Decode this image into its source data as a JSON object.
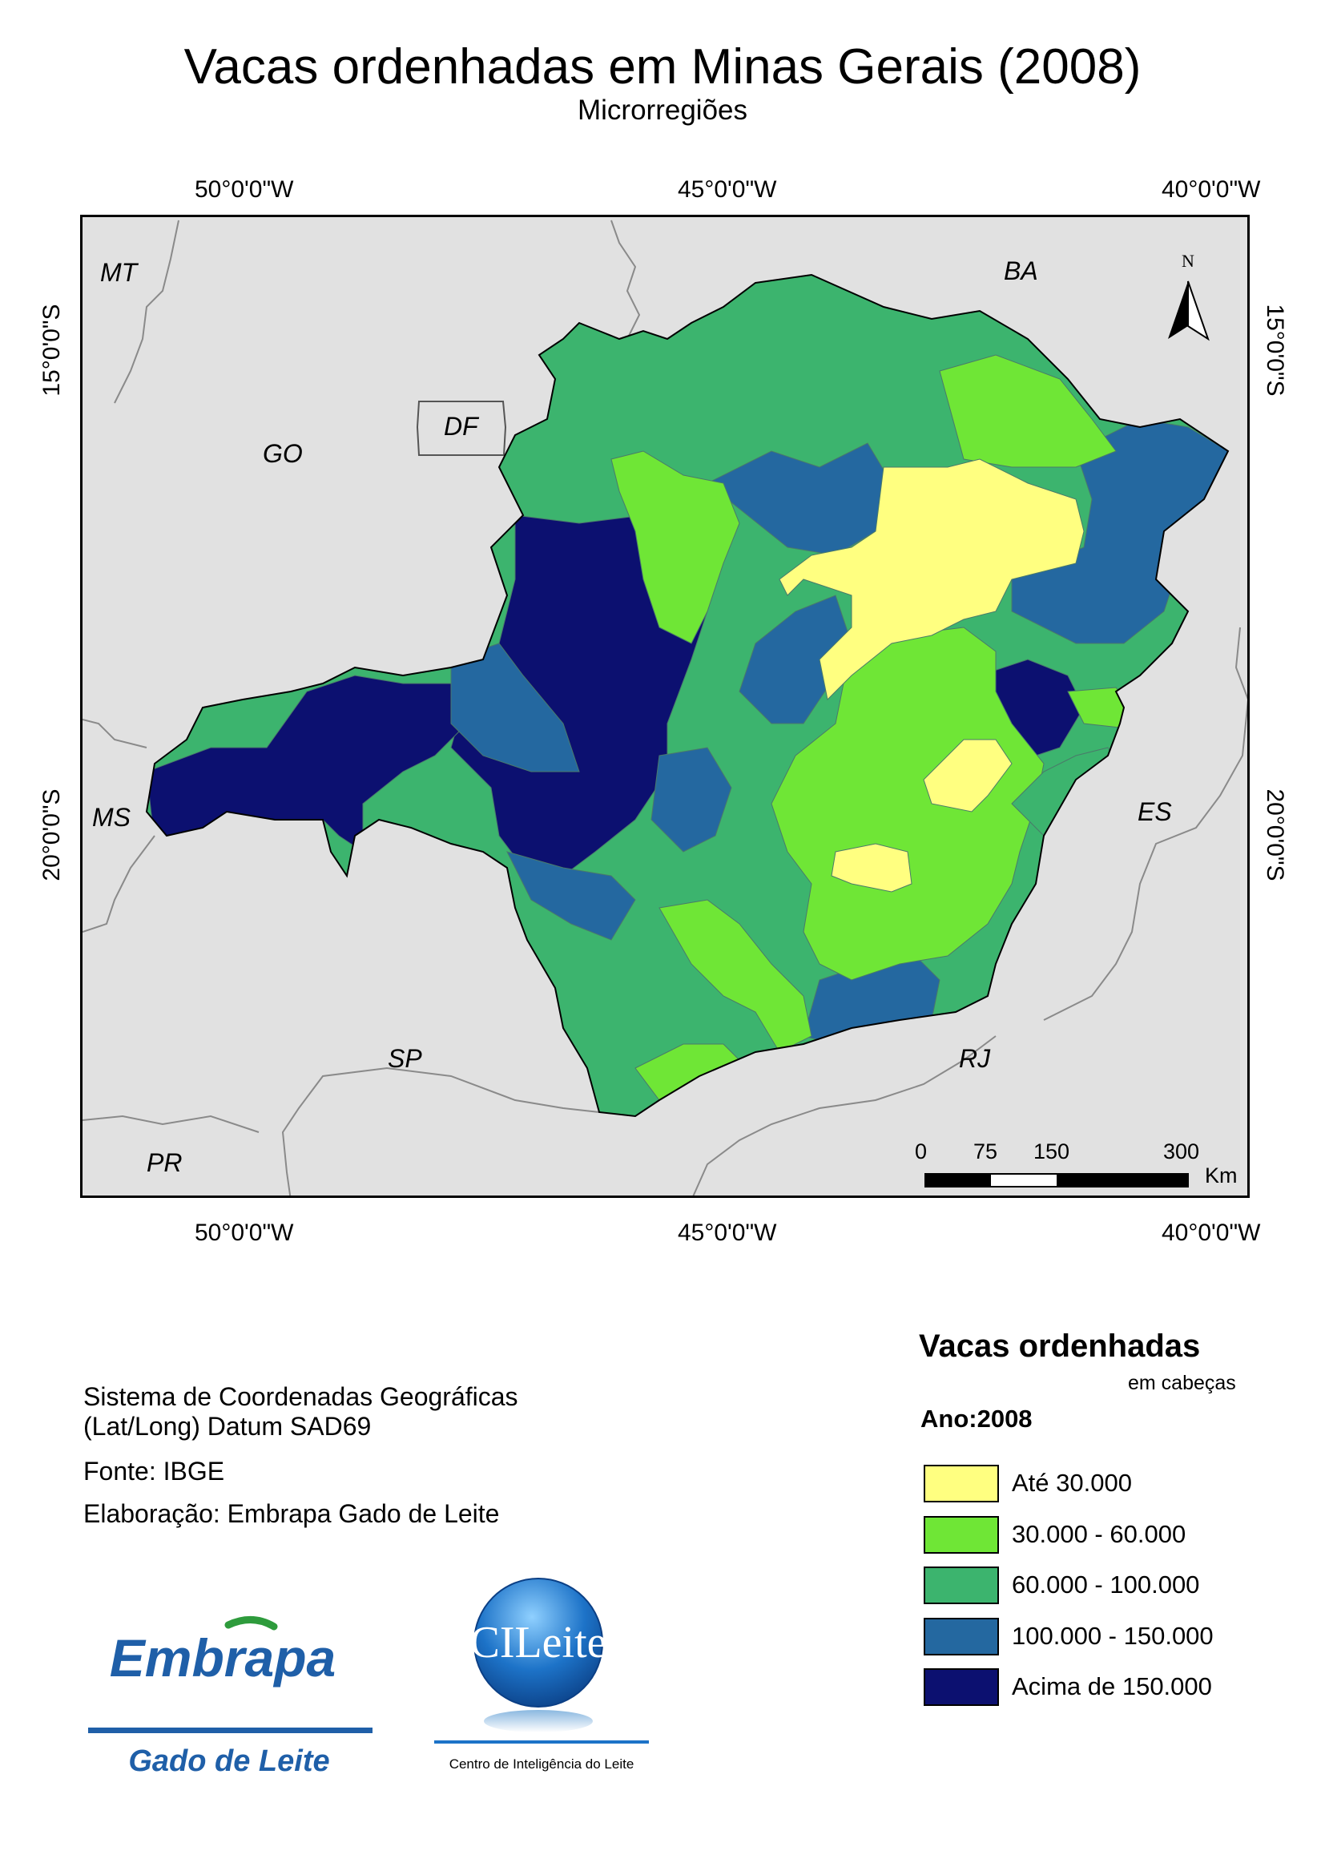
{
  "title": "Vacas ordenhadas em Minas Gerais (2008)",
  "subtitle": "Microrregiões",
  "graticule": {
    "top": [
      "50°0'0\"W",
      "45°0'0\"W",
      "40°0'0\"W"
    ],
    "bottom": [
      "50°0'0\"W",
      "45°0'0\"W",
      "40°0'0\"W"
    ],
    "left": [
      "15°0'0\"S",
      "20°0'0\"S"
    ],
    "right": [
      "15°0'0\"S",
      "20°0'0\"S"
    ]
  },
  "map": {
    "north_label": "N",
    "states": {
      "mt": "MT",
      "ba": "BA",
      "go": "GO",
      "df": "DF",
      "ms": "MS",
      "es": "ES",
      "sp": "SP",
      "rj": "RJ",
      "pr": "PR"
    },
    "colors": {
      "background": "#e1e1e1",
      "class1": "#ffff80",
      "class2": "#6fe636",
      "class3": "#3cb46e",
      "class4": "#2468a0",
      "class5": "#0c1070"
    }
  },
  "scale_bar": {
    "ticks": [
      "0",
      "75",
      "150",
      "300"
    ],
    "unit": "Km"
  },
  "credits": {
    "line1": "Sistema de Coordenadas Geográficas",
    "line2": "(Lat/Long) Datum SAD69",
    "source": "Fonte: IBGE",
    "author": "Elaboração: Embrapa Gado de Leite"
  },
  "legend": {
    "title": "Vacas ordenhadas",
    "unit": "em cabeças",
    "year": "Ano:2008",
    "items": [
      {
        "label": "Até 30.000",
        "color": "#ffff80"
      },
      {
        "label": "30.000 - 60.000",
        "color": "#6fe636"
      },
      {
        "label": "60.000 - 100.000",
        "color": "#3cb46e"
      },
      {
        "label": "100.000 - 150.000",
        "color": "#2468a0"
      },
      {
        "label": "Acima de 150.000",
        "color": "#0c1070"
      }
    ]
  },
  "logos": {
    "embrapa_name": "Embrapa",
    "embrapa_sub": "Gado de Leite",
    "cileite_name": "CILeite",
    "cileite_sub": "Centro de Inteligência do Leite"
  }
}
